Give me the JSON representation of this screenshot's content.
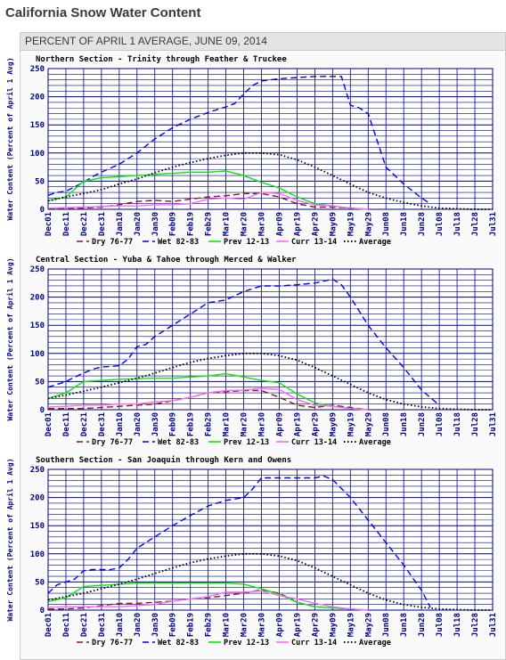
{
  "page": {
    "title": "California Snow Water Content",
    "subtitle": "PERCENT OF APRIL 1 AVERAGE, JUNE 09, 2014"
  },
  "colors": {
    "dry": "#8b1a1a",
    "wet": "#0000ff",
    "prev": "#00ee00",
    "curr": "#ff66ff",
    "average": "#000000",
    "grid": "#00008b"
  },
  "chart_data": [
    {
      "type": "line",
      "title": "Northern Section - Trinity through Feather & Truckee",
      "ylabel": "Water Content (Percent of April 1 Avg)",
      "xlabel": "",
      "ylim": [
        0,
        250
      ],
      "yticks": [
        0,
        50,
        100,
        150,
        200,
        250
      ],
      "categories": [
        "Dec01",
        "Dec11",
        "Dec21",
        "Dec31",
        "Jan10",
        "Jan20",
        "Jan30",
        "Feb09",
        "Feb19",
        "Feb29",
        "Mar10",
        "Mar20",
        "Mar30",
        "Apr09",
        "Apr19",
        "Apr29",
        "May09",
        "May19",
        "May29",
        "Jun08",
        "Jun18",
        "Jun28",
        "Jul08",
        "Jul18",
        "Jul28",
        "Jul31"
      ],
      "series": [
        {
          "name": "Dry 76-77",
          "color_key": "dry",
          "dash": "dash",
          "x": [
            0,
            1,
            2,
            3,
            4,
            5,
            6,
            7,
            8,
            9,
            10,
            11,
            12,
            13,
            14,
            15,
            16,
            17,
            18
          ],
          "values": [
            2,
            2,
            2,
            4,
            8,
            14,
            16,
            14,
            18,
            22,
            24,
            28,
            28,
            22,
            10,
            4,
            4,
            2,
            0
          ]
        },
        {
          "name": "Wet 82-83",
          "color_key": "wet",
          "dash": "dash",
          "x": [
            0,
            0.5,
            1,
            1.5,
            2,
            2.5,
            3,
            4,
            5,
            6,
            7,
            8,
            9,
            10,
            10.5,
            11,
            11.5,
            12,
            13,
            14,
            15,
            16,
            16.5,
            17,
            17.5,
            18,
            19,
            20,
            21,
            21.5
          ],
          "values": [
            25,
            30,
            32,
            40,
            48,
            58,
            66,
            80,
            100,
            125,
            145,
            160,
            172,
            182,
            188,
            205,
            220,
            228,
            232,
            234,
            236,
            236,
            236,
            185,
            180,
            170,
            75,
            45,
            20,
            10
          ]
        },
        {
          "name": "Prev 12-13",
          "color_key": "prev",
          "dash": "solid",
          "x": [
            0,
            1,
            2,
            3,
            4,
            5,
            6,
            7,
            8,
            9,
            10,
            11,
            12,
            13,
            14,
            15,
            16,
            17,
            18
          ],
          "values": [
            15,
            22,
            50,
            56,
            58,
            60,
            62,
            64,
            66,
            66,
            68,
            60,
            48,
            38,
            22,
            10,
            6,
            2,
            0
          ]
        },
        {
          "name": "Curr 13-14",
          "color_key": "curr",
          "dash": "solid",
          "x": [
            0,
            1,
            2,
            3,
            4,
            5,
            6,
            7,
            8,
            9,
            10,
            11,
            12,
            13,
            14,
            15,
            16,
            17,
            18
          ],
          "values": [
            2,
            3,
            4,
            5,
            6,
            6,
            8,
            8,
            10,
            18,
            20,
            18,
            30,
            28,
            16,
            8,
            6,
            2,
            0
          ]
        },
        {
          "name": "Average",
          "color_key": "average",
          "dash": "dot",
          "x": [
            0,
            1,
            2,
            3,
            4,
            5,
            6,
            7,
            8,
            9,
            10,
            11,
            12,
            13,
            14,
            15,
            16,
            17,
            18,
            19,
            20,
            21,
            22,
            23,
            24,
            25
          ],
          "values": [
            15,
            22,
            28,
            35,
            45,
            54,
            65,
            75,
            83,
            90,
            96,
            100,
            100,
            97,
            88,
            75,
            60,
            45,
            30,
            20,
            12,
            6,
            2,
            1,
            0,
            0
          ]
        }
      ],
      "legend": [
        "Dry 76-77",
        "Wet 82-83",
        "Prev 12-13",
        "Curr 13-14",
        "Average"
      ],
      "legend_position": "bottom"
    },
    {
      "type": "line",
      "title": "Central Section - Yuba & Tahoe through Merced & Walker",
      "ylabel": "Water Content (Percent of April 1 Avg)",
      "xlabel": "",
      "ylim": [
        0,
        250
      ],
      "yticks": [
        0,
        50,
        100,
        150,
        200,
        250
      ],
      "categories": [
        "Dec01",
        "Dec11",
        "Dec21",
        "Dec31",
        "Jan10",
        "Jan20",
        "Jan30",
        "Feb09",
        "Feb19",
        "Feb29",
        "Mar10",
        "Mar20",
        "Mar30",
        "Apr09",
        "Apr19",
        "Apr29",
        "May09",
        "May19",
        "May29",
        "Jun08",
        "Jun18",
        "Jun28",
        "Jul08",
        "Jul18",
        "Jul28",
        "Jul31"
      ],
      "series": [
        {
          "name": "Dry 76-77",
          "color_key": "dry",
          "dash": "dash",
          "x": [
            0,
            1,
            2,
            3,
            4,
            5,
            6,
            7,
            8,
            9,
            10,
            11,
            12,
            13,
            14,
            15,
            16,
            17,
            18
          ],
          "values": [
            2,
            2,
            2,
            4,
            6,
            8,
            10,
            16,
            22,
            30,
            32,
            34,
            34,
            22,
            8,
            4,
            8,
            4,
            0
          ]
        },
        {
          "name": "Wet 82-83",
          "color_key": "wet",
          "dash": "dash",
          "x": [
            0,
            0.5,
            1,
            1.5,
            2,
            2.5,
            3,
            4,
            4.5,
            5,
            5.5,
            6,
            7,
            8,
            9,
            10,
            11,
            12,
            13,
            14,
            15,
            16,
            16.5,
            17,
            18,
            19,
            20,
            21,
            22
          ],
          "values": [
            40,
            45,
            50,
            58,
            65,
            72,
            76,
            78,
            90,
            112,
            116,
            130,
            150,
            170,
            190,
            195,
            210,
            220,
            220,
            222,
            225,
            232,
            222,
            200,
            150,
            110,
            75,
            35,
            8
          ]
        },
        {
          "name": "Prev 12-13",
          "color_key": "prev",
          "dash": "solid",
          "x": [
            0,
            1,
            2,
            3,
            4,
            5,
            6,
            7,
            8,
            9,
            10,
            11,
            12,
            13,
            14,
            15,
            16,
            17,
            18
          ],
          "values": [
            20,
            30,
            50,
            52,
            54,
            55,
            56,
            56,
            58,
            60,
            64,
            58,
            52,
            48,
            28,
            12,
            6,
            2,
            0
          ]
        },
        {
          "name": "Curr 13-14",
          "color_key": "curr",
          "dash": "solid",
          "x": [
            0,
            1,
            2,
            3,
            4,
            5,
            6,
            7,
            8,
            9,
            10,
            11,
            12,
            13,
            14,
            15,
            16,
            17,
            18
          ],
          "values": [
            5,
            6,
            8,
            8,
            10,
            10,
            14,
            16,
            22,
            30,
            34,
            35,
            38,
            36,
            18,
            8,
            6,
            2,
            0
          ]
        },
        {
          "name": "Average",
          "color_key": "average",
          "dash": "dot",
          "x": [
            0,
            1,
            2,
            3,
            4,
            5,
            6,
            7,
            8,
            9,
            10,
            11,
            12,
            13,
            14,
            15,
            16,
            17,
            18,
            19,
            20,
            21,
            22,
            23,
            24,
            25
          ],
          "values": [
            20,
            26,
            33,
            40,
            48,
            56,
            65,
            75,
            84,
            91,
            96,
            100,
            100,
            96,
            88,
            75,
            60,
            45,
            30,
            18,
            10,
            5,
            2,
            1,
            0,
            0
          ]
        }
      ],
      "legend": [
        "Dry 76-77",
        "Wet 82-83",
        "Prev 12-13",
        "Curr 13-14",
        "Average"
      ],
      "legend_position": "bottom"
    },
    {
      "type": "line",
      "title": "Southern Section - San Joaquin through Kern and Owens",
      "ylabel": "Water Content (Percent of April 1 Avg)",
      "xlabel": "",
      "ylim": [
        0,
        250
      ],
      "yticks": [
        0,
        50,
        100,
        150,
        200,
        250
      ],
      "categories": [
        "Dec01",
        "Dec11",
        "Dec21",
        "Dec31",
        "Jan10",
        "Jan20",
        "Jan30",
        "Feb09",
        "Feb19",
        "Feb29",
        "Mar10",
        "Mar20",
        "Mar30",
        "Apr09",
        "Apr19",
        "Apr29",
        "May09",
        "May19",
        "May29",
        "Jun08",
        "Jun18",
        "Jun28",
        "Jul08",
        "Jul18",
        "Jul28",
        "Jul31"
      ],
      "series": [
        {
          "name": "Dry 76-77",
          "color_key": "dry",
          "dash": "dash",
          "x": [
            0,
            1,
            2,
            3,
            4,
            5,
            6,
            7,
            8,
            9,
            10,
            11,
            12,
            13,
            14,
            15,
            16,
            17,
            18
          ],
          "values": [
            2,
            2,
            4,
            8,
            12,
            12,
            14,
            16,
            20,
            22,
            26,
            30,
            36,
            30,
            14,
            6,
            4,
            2,
            0
          ]
        },
        {
          "name": "Wet 82-83",
          "color_key": "wet",
          "dash": "dash",
          "x": [
            0,
            0.5,
            1,
            1.5,
            2,
            2.5,
            3,
            3.5,
            4,
            4.5,
            5,
            6,
            7,
            8,
            9,
            10,
            11,
            11.5,
            12,
            13,
            14,
            15,
            15.5,
            16,
            17,
            18,
            19,
            20,
            21,
            21.5
          ],
          "values": [
            30,
            45,
            50,
            55,
            70,
            72,
            72,
            72,
            75,
            90,
            110,
            130,
            150,
            168,
            185,
            195,
            200,
            215,
            235,
            235,
            235,
            235,
            238,
            232,
            200,
            160,
            120,
            80,
            35,
            5
          ]
        },
        {
          "name": "Prev 12-13",
          "color_key": "prev",
          "dash": "solid",
          "x": [
            0,
            1,
            2,
            3,
            4,
            5,
            6,
            7,
            8,
            9,
            10,
            11,
            12,
            13,
            14,
            15,
            16,
            17,
            18
          ],
          "values": [
            15,
            22,
            42,
            44,
            46,
            48,
            48,
            48,
            48,
            48,
            48,
            46,
            38,
            28,
            14,
            6,
            4,
            2,
            0
          ]
        },
        {
          "name": "Curr 13-14",
          "color_key": "curr",
          "dash": "solid",
          "x": [
            0,
            1,
            2,
            3,
            4,
            5,
            6,
            7,
            8,
            9,
            10,
            11,
            12,
            13,
            14,
            15,
            16,
            17,
            18
          ],
          "values": [
            5,
            6,
            6,
            6,
            6,
            8,
            10,
            16,
            20,
            24,
            32,
            32,
            34,
            26,
            20,
            12,
            6,
            2,
            0
          ]
        },
        {
          "name": "Average",
          "color_key": "average",
          "dash": "dot",
          "x": [
            0,
            1,
            2,
            3,
            4,
            5,
            6,
            7,
            8,
            9,
            10,
            11,
            12,
            13,
            14,
            15,
            16,
            17,
            18,
            19,
            20,
            21,
            22,
            23,
            24,
            25
          ],
          "values": [
            18,
            24,
            30,
            38,
            46,
            55,
            65,
            75,
            84,
            91,
            96,
            100,
            100,
            96,
            88,
            75,
            60,
            45,
            30,
            18,
            10,
            5,
            2,
            1,
            0,
            0
          ]
        }
      ],
      "legend": [
        "Dry 76-77",
        "Wet 82-83",
        "Prev 12-13",
        "Curr 13-14",
        "Average"
      ],
      "legend_position": "bottom"
    }
  ]
}
